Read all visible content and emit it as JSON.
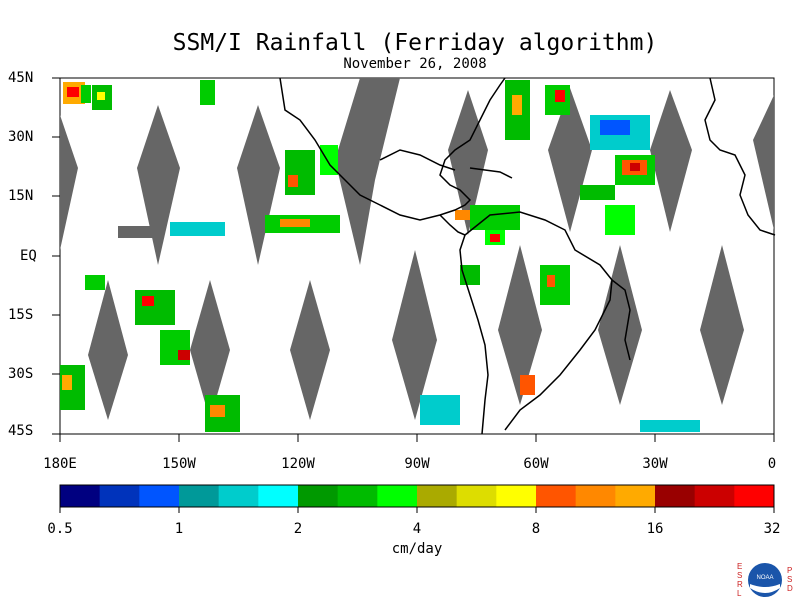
{
  "title": "SSM/I Rainfall (Ferriday algorithm)",
  "subtitle": "November 26, 2008",
  "lat_labels": [
    "45N",
    "30N",
    "15N",
    "EQ",
    "15S",
    "30S",
    "45S"
  ],
  "lon_labels": [
    "180E",
    "150W",
    "120W",
    "90W",
    "60W",
    "30W",
    "0"
  ],
  "colorbar": {
    "unit": "cm/day",
    "tick_labels": [
      "0.5",
      "1",
      "2",
      "4",
      "8",
      "16",
      "32"
    ],
    "colors": [
      "#000080",
      "#0033bb",
      "#0055ff",
      "#009999",
      "#00cccc",
      "#00ffff",
      "#009900",
      "#00bb00",
      "#00ff00",
      "#aaaa00",
      "#dddd00",
      "#ffff00",
      "#ff5500",
      "#ff8800",
      "#ffaa00",
      "#990000",
      "#cc0000",
      "#ff0000"
    ]
  },
  "logo": {
    "left_letters": "ESRL",
    "right_letters": "PSD",
    "emblem": "NOAA"
  },
  "colors": {
    "swath_gap": "#666666",
    "coastline": "#000000",
    "background": "#ffffff"
  }
}
